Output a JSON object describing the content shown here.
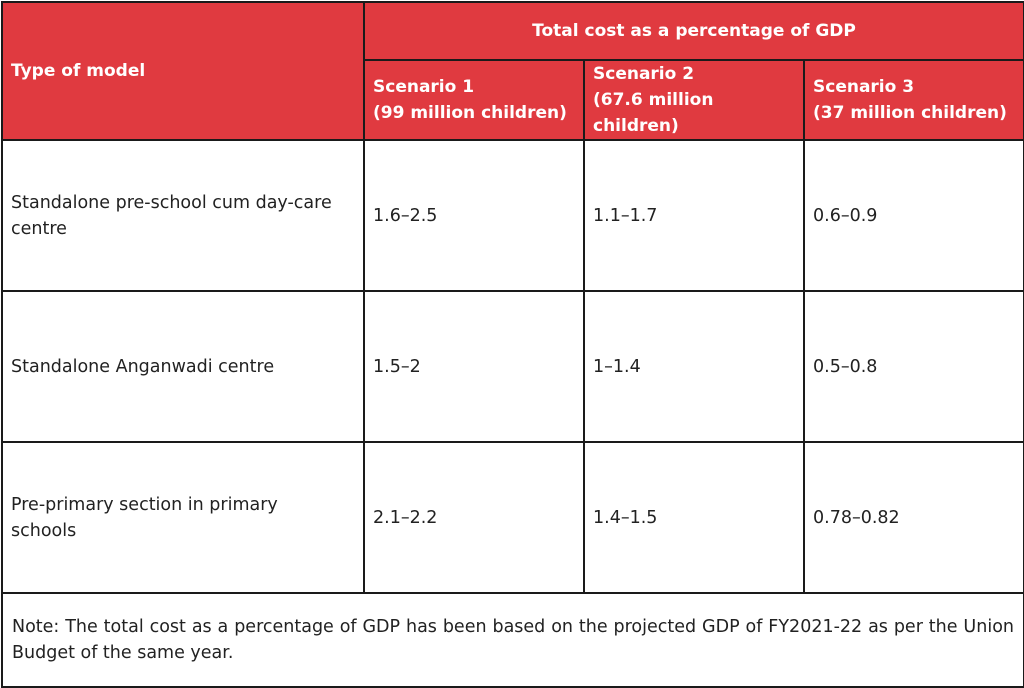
{
  "table": {
    "header": {
      "type_label": "Type of model",
      "group_label": "Total cost as a percentage of GDP",
      "scenarios": [
        {
          "title": "Scenario 1",
          "subtitle": "(99 million children)"
        },
        {
          "title": "Scenario 2",
          "subtitle": "(67.6 million children)"
        },
        {
          "title": "Scenario 3",
          "subtitle": "(37 million children)"
        }
      ]
    },
    "rows": [
      {
        "model_line1": "Standalone pre-school cum day-care",
        "model_line2": "centre",
        "values": [
          "1.6–2.5",
          "1.1–1.7",
          "0.6–0.9"
        ]
      },
      {
        "model_line1": "Standalone Anganwadi centre",
        "model_line2": "",
        "values": [
          "1.5–2",
          "1–1.4",
          "0.5–0.8"
        ]
      },
      {
        "model_line1": "Pre-primary section in primary",
        "model_line2": "schools",
        "values": [
          "2.1–2.2",
          "1.4–1.5",
          "0.78–0.82"
        ]
      }
    ],
    "note": "Note: The total cost as a percentage of GDP has been based on the projected GDP of FY2021-22 as per the Union Budget of the same year."
  },
  "colors": {
    "header_bg": "#e03a40",
    "header_text": "#ffffff",
    "border": "#1a1a1a",
    "body_text": "#222222"
  }
}
